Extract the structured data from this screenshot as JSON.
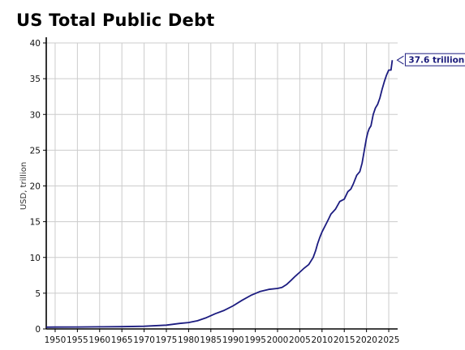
{
  "chart_data": {
    "type": "line",
    "title": "US Total Public Debt",
    "xlabel": "",
    "ylabel": "USD, trillion",
    "xlim": [
      1948,
      2027
    ],
    "ylim": [
      0,
      40
    ],
    "xticks": [
      1950,
      1955,
      1960,
      1965,
      1970,
      1975,
      1980,
      1985,
      1990,
      1995,
      2000,
      2005,
      2010,
      2015,
      2020,
      2025
    ],
    "yticks": [
      0,
      5,
      10,
      15,
      20,
      25,
      30,
      35,
      40
    ],
    "grid": true,
    "line_color": "#1c1c80",
    "end_label": "37.6 trillion",
    "series": [
      {
        "x": [
          1948,
          1950,
          1955,
          1960,
          1965,
          1970,
          1975,
          1978,
          1980,
          1982,
          1984,
          1986,
          1988,
          1990,
          1992,
          1994,
          1996,
          1998,
          2000,
          2001,
          2002,
          2003,
          2004,
          2005,
          2006,
          2007,
          2008,
          2008.6,
          2009,
          2009.5,
          2010,
          2011,
          2011.5,
          2012,
          2013,
          2014,
          2015,
          2015.8,
          2016.5,
          2017,
          2017.8,
          2018.5,
          2019,
          2019.8,
          2020,
          2020.3,
          2020.6,
          2021,
          2021.5,
          2022,
          2022.5,
          2023,
          2023.5,
          2024,
          2024.5,
          2025,
          2025.5,
          2025.8
        ],
        "y": [
          0.25,
          0.26,
          0.27,
          0.29,
          0.32,
          0.37,
          0.53,
          0.77,
          0.9,
          1.14,
          1.57,
          2.13,
          2.6,
          3.23,
          4.0,
          4.69,
          5.22,
          5.53,
          5.67,
          5.8,
          6.2,
          6.78,
          7.38,
          7.93,
          8.51,
          9.0,
          10.0,
          11.0,
          11.9,
          12.8,
          13.56,
          14.79,
          15.4,
          16.07,
          16.74,
          17.82,
          18.15,
          19.2,
          19.57,
          20.24,
          21.5,
          22.0,
          23.2,
          26.0,
          26.7,
          27.5,
          28.0,
          28.4,
          30.0,
          30.9,
          31.4,
          32.3,
          33.5,
          34.6,
          35.5,
          36.2,
          36.2,
          37.6
        ]
      }
    ]
  }
}
